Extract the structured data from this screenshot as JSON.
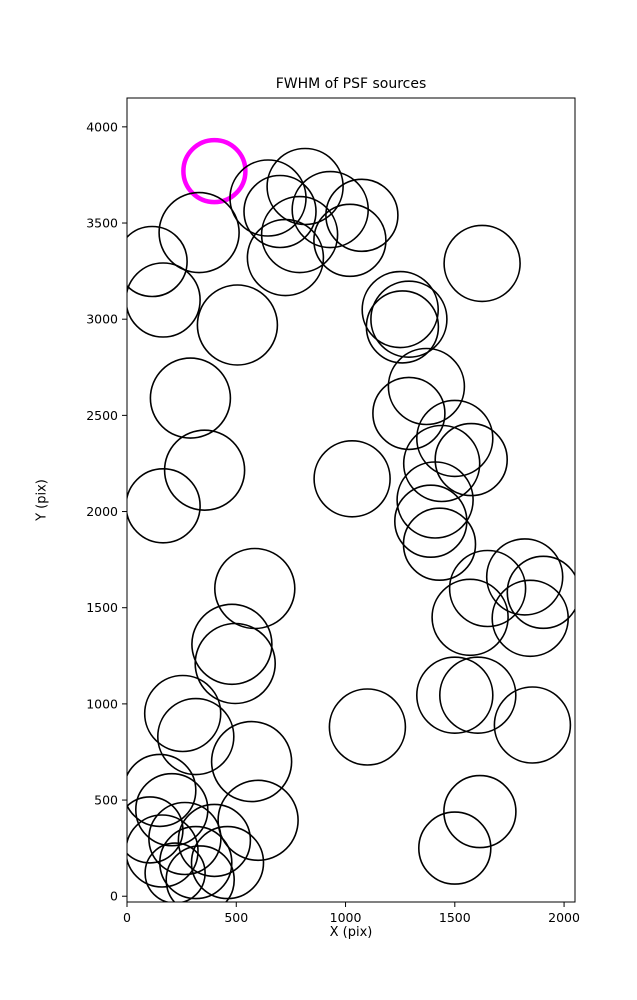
{
  "chart_data": {
    "type": "scatter",
    "title": "FWHM of PSF sources",
    "xlabel": "X (pix)",
    "ylabel": "Y (pix)",
    "xlim": [
      0,
      2050
    ],
    "ylim": [
      -30,
      4150
    ],
    "xticks": [
      0,
      500,
      1000,
      1500,
      2000
    ],
    "yticks": [
      0,
      500,
      1000,
      1500,
      2000,
      2500,
      3000,
      3500,
      4000
    ],
    "grid": false,
    "legend": null,
    "marker_style": "open-circle",
    "colors": {
      "default": "#000000",
      "highlight": "#ff00ff",
      "spine": "#000000"
    },
    "highlight_note": "single magenta circle near (400, 3770)",
    "circles": [
      {
        "x": 400,
        "y": 3770,
        "r": 31,
        "highlight": true
      },
      {
        "x": 330,
        "y": 3450,
        "r": 40
      },
      {
        "x": 115,
        "y": 3300,
        "r": 35
      },
      {
        "x": 165,
        "y": 3100,
        "r": 37
      },
      {
        "x": 645,
        "y": 3630,
        "r": 38
      },
      {
        "x": 815,
        "y": 3690,
        "r": 38
      },
      {
        "x": 930,
        "y": 3570,
        "r": 38
      },
      {
        "x": 1075,
        "y": 3540,
        "r": 36
      },
      {
        "x": 790,
        "y": 3440,
        "r": 38
      },
      {
        "x": 1020,
        "y": 3410,
        "r": 36
      },
      {
        "x": 725,
        "y": 3320,
        "r": 38
      },
      {
        "x": 700,
        "y": 3560,
        "r": 36
      },
      {
        "x": 1625,
        "y": 3290,
        "r": 38
      },
      {
        "x": 1250,
        "y": 3050,
        "r": 38
      },
      {
        "x": 1290,
        "y": 3000,
        "r": 38
      },
      {
        "x": 1260,
        "y": 2960,
        "r": 36
      },
      {
        "x": 1370,
        "y": 2650,
        "r": 38
      },
      {
        "x": 1290,
        "y": 2510,
        "r": 36
      },
      {
        "x": 1500,
        "y": 2380,
        "r": 38
      },
      {
        "x": 1575,
        "y": 2270,
        "r": 36
      },
      {
        "x": 1440,
        "y": 2250,
        "r": 38
      },
      {
        "x": 1410,
        "y": 2060,
        "r": 38
      },
      {
        "x": 1390,
        "y": 1950,
        "r": 36
      },
      {
        "x": 1430,
        "y": 1830,
        "r": 36
      },
      {
        "x": 1030,
        "y": 2170,
        "r": 38
      },
      {
        "x": 505,
        "y": 2970,
        "r": 40
      },
      {
        "x": 290,
        "y": 2590,
        "r": 40
      },
      {
        "x": 355,
        "y": 2215,
        "r": 40
      },
      {
        "x": 165,
        "y": 2030,
        "r": 37
      },
      {
        "x": 585,
        "y": 1600,
        "r": 40
      },
      {
        "x": 480,
        "y": 1310,
        "r": 40
      },
      {
        "x": 495,
        "y": 1210,
        "r": 40
      },
      {
        "x": 1650,
        "y": 1600,
        "r": 38
      },
      {
        "x": 1820,
        "y": 1660,
        "r": 38
      },
      {
        "x": 1905,
        "y": 1580,
        "r": 36
      },
      {
        "x": 1570,
        "y": 1450,
        "r": 38
      },
      {
        "x": 1845,
        "y": 1445,
        "r": 38
      },
      {
        "x": 1500,
        "y": 1045,
        "r": 38
      },
      {
        "x": 1605,
        "y": 1045,
        "r": 38
      },
      {
        "x": 1855,
        "y": 890,
        "r": 38
      },
      {
        "x": 1615,
        "y": 440,
        "r": 36
      },
      {
        "x": 1500,
        "y": 250,
        "r": 36
      },
      {
        "x": 1100,
        "y": 880,
        "r": 38
      },
      {
        "x": 255,
        "y": 950,
        "r": 38
      },
      {
        "x": 315,
        "y": 830,
        "r": 38
      },
      {
        "x": 570,
        "y": 700,
        "r": 40
      },
      {
        "x": 150,
        "y": 550,
        "r": 36
      },
      {
        "x": 205,
        "y": 450,
        "r": 36
      },
      {
        "x": 105,
        "y": 345,
        "r": 33
      },
      {
        "x": 160,
        "y": 235,
        "r": 36
      },
      {
        "x": 265,
        "y": 300,
        "r": 36
      },
      {
        "x": 315,
        "y": 175,
        "r": 36
      },
      {
        "x": 400,
        "y": 290,
        "r": 36
      },
      {
        "x": 460,
        "y": 175,
        "r": 36
      },
      {
        "x": 335,
        "y": 85,
        "r": 34
      },
      {
        "x": 220,
        "y": 120,
        "r": 30
      },
      {
        "x": 600,
        "y": 395,
        "r": 40
      }
    ]
  }
}
